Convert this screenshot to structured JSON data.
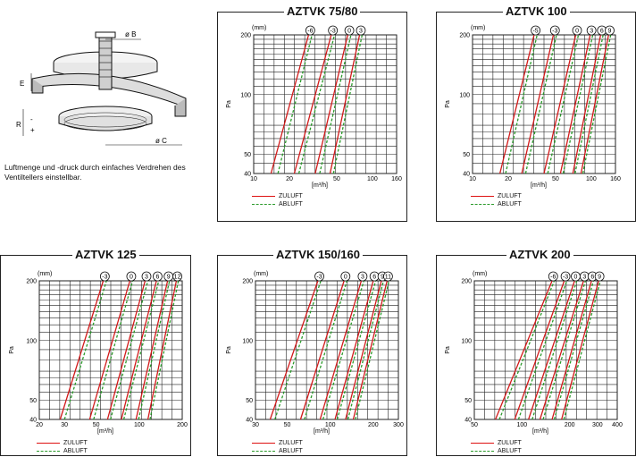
{
  "caption": "Luftmenge und -druck durch einfaches Verdrehen des Ventiltellers einstellbar.",
  "illustration": {
    "dim_B": "ø B",
    "dim_C": "ø C",
    "dim_E": "E",
    "dim_R": "R",
    "dim_plus": "+",
    "dim_minus": "-"
  },
  "legend": {
    "supply": "ZULUFT",
    "exhaust": "ABLUFT"
  },
  "colors": {
    "supply": "#d11a1a",
    "exhaust": "#2a9a2a",
    "grid": "#222222"
  },
  "chart_data": [
    {
      "type": "line",
      "title": "AZTVK 75/80",
      "ylabel": "Pa",
      "xlabel": "[m³/h]",
      "settings_title": "(mm)",
      "log_scale": true,
      "grid": true,
      "xlim": [
        10,
        160
      ],
      "ylim": [
        40,
        200
      ],
      "x_ticks": [
        10,
        20,
        50,
        100,
        160
      ],
      "y_ticks": [
        40,
        50,
        100,
        200
      ],
      "settings": [
        "-6",
        "-3",
        "0",
        "3"
      ],
      "series": [
        {
          "setting": "-6",
          "supply": [
            [
              14,
              40
            ],
            [
              29,
              200
            ]
          ],
          "exhaust": [
            [
              16,
              40
            ],
            [
              31,
              200
            ]
          ]
        },
        {
          "setting": "-3",
          "supply": [
            [
              22,
              40
            ],
            [
              45,
              200
            ]
          ],
          "exhaust": [
            [
              24,
              40
            ],
            [
              48,
              200
            ]
          ]
        },
        {
          "setting": "0",
          "supply": [
            [
              33,
              40
            ],
            [
              62,
              200
            ]
          ],
          "exhaust": [
            [
              36,
              40
            ],
            [
              66,
              200
            ]
          ]
        },
        {
          "setting": "3",
          "supply": [
            [
              44,
              40
            ],
            [
              78,
              200
            ]
          ],
          "exhaust": [
            [
              47,
              40
            ],
            [
              82,
              200
            ]
          ]
        }
      ]
    },
    {
      "type": "line",
      "title": "AZTVK 100",
      "ylabel": "Pa",
      "xlabel": "[m³/h]",
      "settings_title": "(mm)",
      "log_scale": true,
      "grid": true,
      "xlim": [
        10,
        160
      ],
      "ylim": [
        40,
        200
      ],
      "x_ticks": [
        10,
        20,
        50,
        100,
        160
      ],
      "y_ticks": [
        40,
        50,
        100,
        200
      ],
      "settings": [
        "-5",
        "-3",
        "0",
        "3",
        "6",
        "9"
      ],
      "series": [
        {
          "setting": "-5",
          "supply": [
            [
              17,
              40
            ],
            [
              33,
              200
            ]
          ],
          "exhaust": [
            [
              19,
              40
            ],
            [
              35,
              200
            ]
          ]
        },
        {
          "setting": "-3",
          "supply": [
            [
              26,
              40
            ],
            [
              48,
              200
            ]
          ],
          "exhaust": [
            [
              28,
              40
            ],
            [
              51,
              200
            ]
          ]
        },
        {
          "setting": "0",
          "supply": [
            [
              40,
              40
            ],
            [
              74,
              200
            ]
          ],
          "exhaust": [
            [
              43,
              40
            ],
            [
              78,
              200
            ]
          ]
        },
        {
          "setting": "3",
          "supply": [
            [
              55,
              40
            ],
            [
              98,
              200
            ]
          ],
          "exhaust": [
            [
              58,
              40
            ],
            [
              103,
              200
            ]
          ]
        },
        {
          "setting": "6",
          "supply": [
            [
              70,
              40
            ],
            [
              120,
              200
            ]
          ],
          "exhaust": [
            [
              73,
              40
            ],
            [
              126,
              200
            ]
          ]
        },
        {
          "setting": "9",
          "supply": [
            [
              82,
              40
            ],
            [
              140,
              200
            ]
          ],
          "exhaust": [
            [
              85,
              40
            ],
            [
              146,
              200
            ]
          ]
        }
      ]
    },
    {
      "type": "line",
      "title": "AZTVK 125",
      "ylabel": "Pa",
      "xlabel": "[m³/h]",
      "settings_title": "(mm)",
      "log_scale": true,
      "grid": true,
      "xlim": [
        20,
        200
      ],
      "ylim": [
        40,
        200
      ],
      "x_ticks": [
        20,
        30,
        50,
        100,
        200
      ],
      "y_ticks": [
        40,
        50,
        100,
        200
      ],
      "settings": [
        "-3",
        "0",
        "3",
        "6",
        "9",
        "12"
      ],
      "series": [
        {
          "setting": "-3",
          "supply": [
            [
              28,
              40
            ],
            [
              56,
              200
            ]
          ],
          "exhaust": [
            [
              30,
              40
            ],
            [
              59,
              200
            ]
          ]
        },
        {
          "setting": "0",
          "supply": [
            [
              45,
              40
            ],
            [
              86,
              200
            ]
          ],
          "exhaust": [
            [
              48,
              40
            ],
            [
              90,
              200
            ]
          ]
        },
        {
          "setting": "3",
          "supply": [
            [
              60,
              40
            ],
            [
              110,
              200
            ]
          ],
          "exhaust": [
            [
              63,
              40
            ],
            [
              115,
              200
            ]
          ]
        },
        {
          "setting": "6",
          "supply": [
            [
              75,
              40
            ],
            [
              132,
              200
            ]
          ],
          "exhaust": [
            [
              78,
              40
            ],
            [
              137,
              200
            ]
          ]
        },
        {
          "setting": "9",
          "supply": [
            [
              95,
              40
            ],
            [
              158,
              200
            ]
          ],
          "exhaust": [
            [
              99,
              40
            ],
            [
              163,
              200
            ]
          ]
        },
        {
          "setting": "12",
          "supply": [
            [
              115,
              40
            ],
            [
              182,
              200
            ]
          ],
          "exhaust": [
            [
              119,
              40
            ],
            [
              188,
              200
            ]
          ]
        }
      ]
    },
    {
      "type": "line",
      "title": "AZTVK 150/160",
      "ylabel": "Pa",
      "xlabel": "[m³/h]",
      "settings_title": "(mm)",
      "log_scale": true,
      "grid": true,
      "xlim": [
        30,
        300
      ],
      "ylim": [
        40,
        200
      ],
      "x_ticks": [
        30,
        50,
        100,
        200,
        300
      ],
      "y_ticks": [
        40,
        50,
        100,
        200
      ],
      "settings": [
        "-3",
        "0",
        "3",
        "6",
        "9",
        "11"
      ],
      "series": [
        {
          "setting": "-3",
          "supply": [
            [
              38,
              40
            ],
            [
              82,
              200
            ]
          ],
          "exhaust": [
            [
              41,
              40
            ],
            [
              86,
              200
            ]
          ]
        },
        {
          "setting": "0",
          "supply": [
            [
              62,
              40
            ],
            [
              125,
              200
            ]
          ],
          "exhaust": [
            [
              66,
              40
            ],
            [
              131,
              200
            ]
          ]
        },
        {
          "setting": "3",
          "supply": [
            [
              85,
              40
            ],
            [
              165,
              200
            ]
          ],
          "exhaust": [
            [
              89,
              40
            ],
            [
              172,
              200
            ]
          ]
        },
        {
          "setting": "6",
          "supply": [
            [
              108,
              40
            ],
            [
              200,
              200
            ]
          ],
          "exhaust": [
            [
              112,
              40
            ],
            [
              208,
              200
            ]
          ]
        },
        {
          "setting": "9",
          "supply": [
            [
              128,
              40
            ],
            [
              228,
              200
            ]
          ],
          "exhaust": [
            [
              133,
              40
            ],
            [
              236,
              200
            ]
          ]
        },
        {
          "setting": "11",
          "supply": [
            [
              145,
              40
            ],
            [
              250,
              200
            ]
          ],
          "exhaust": [
            [
              150,
              40
            ],
            [
              258,
              200
            ]
          ]
        }
      ]
    },
    {
      "type": "line",
      "title": "AZTVK 200",
      "ylabel": "Pa",
      "xlabel": "[m³/h]",
      "settings_title": "(mm)",
      "log_scale": true,
      "grid": true,
      "xlim": [
        50,
        400
      ],
      "ylim": [
        40,
        200
      ],
      "x_ticks": [
        50,
        100,
        200,
        300,
        400
      ],
      "y_ticks": [
        40,
        50,
        100,
        200
      ],
      "settings": [
        "-6",
        "-3",
        "0",
        "3",
        "6",
        "9"
      ],
      "series": [
        {
          "setting": "-6",
          "supply": [
            [
              68,
              40
            ],
            [
              155,
              200
            ]
          ],
          "exhaust": [
            [
              72,
              40
            ],
            [
              160,
              200
            ]
          ]
        },
        {
          "setting": "-3",
          "supply": [
            [
              90,
              40
            ],
            [
              185,
              200
            ]
          ],
          "exhaust": [
            [
              95,
              40
            ],
            [
              192,
              200
            ]
          ]
        },
        {
          "setting": "0",
          "supply": [
            [
              110,
              40
            ],
            [
              215,
              200
            ]
          ],
          "exhaust": [
            [
              116,
              40
            ],
            [
              222,
              200
            ]
          ]
        },
        {
          "setting": "3",
          "supply": [
            [
              130,
              40
            ],
            [
              245,
              200
            ]
          ],
          "exhaust": [
            [
              136,
              40
            ],
            [
              252,
              200
            ]
          ]
        },
        {
          "setting": "6",
          "supply": [
            [
              155,
              40
            ],
            [
              275,
              200
            ]
          ],
          "exhaust": [
            [
              160,
              40
            ],
            [
              283,
              200
            ]
          ]
        },
        {
          "setting": "9",
          "supply": [
            [
              178,
              40
            ],
            [
              305,
              200
            ]
          ],
          "exhaust": [
            [
              184,
              40
            ],
            [
              313,
              200
            ]
          ]
        }
      ]
    }
  ]
}
